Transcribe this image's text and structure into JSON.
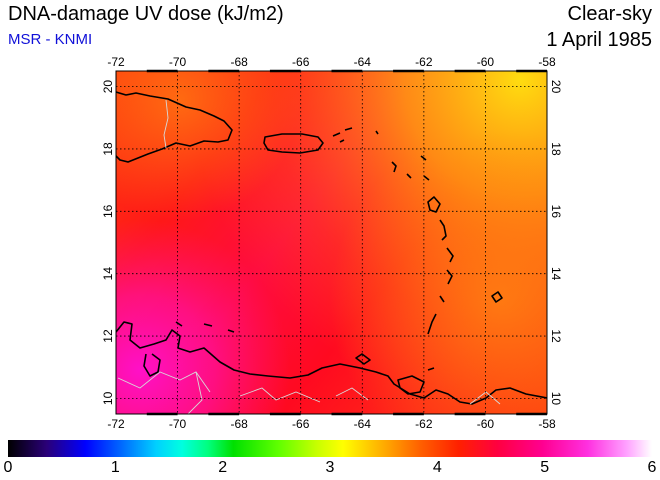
{
  "header": {
    "title": "DNA-damage UV dose (kJ/m2)",
    "source": "MSR - KNMI",
    "sky_condition": "Clear-sky",
    "date": "1 April 1985"
  },
  "map": {
    "lon_range": [
      -72,
      -58
    ],
    "lat_range": [
      9.5,
      20.5
    ],
    "lon_labels": [
      "-72",
      "-70",
      "-68",
      "-66",
      "-64",
      "-62",
      "-60",
      "-58"
    ],
    "lat_labels": [
      "10",
      "12",
      "14",
      "16",
      "18",
      "20"
    ],
    "grid_style": "dotted",
    "colors": {
      "coastline": "#000000",
      "borders": "#d8d8d8",
      "frame": "#000000"
    }
  },
  "colorbar": {
    "range": [
      0,
      6
    ],
    "tick_labels": [
      "0",
      "1",
      "2",
      "3",
      "4",
      "5",
      "6"
    ]
  }
}
